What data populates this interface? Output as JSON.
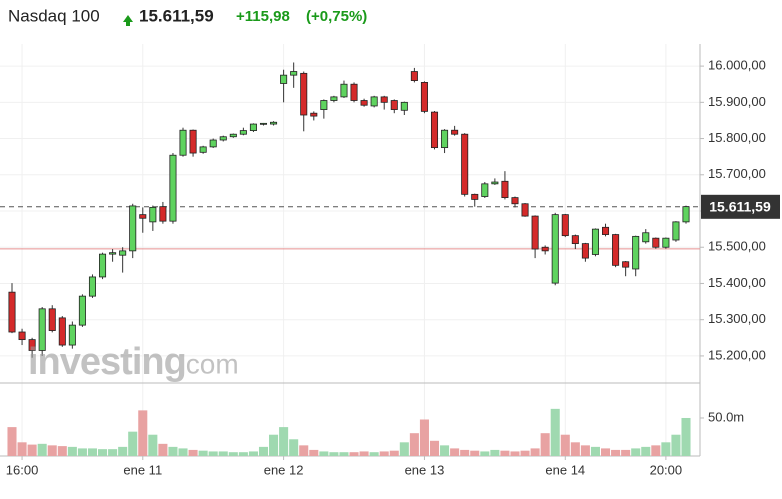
{
  "chart_data": {
    "type": "candlestick",
    "title": "Nasdaq 100",
    "last_price": "15.611,59",
    "change": "+115,98",
    "change_percent": "(+0,75%)",
    "watermark": [
      "investing",
      ".com"
    ],
    "categories": [
      null,
      "16:00",
      null,
      null,
      null,
      null,
      null,
      null,
      null,
      null,
      null,
      null,
      null,
      "ene 11",
      null,
      null,
      null,
      null,
      null,
      null,
      null,
      null,
      null,
      null,
      null,
      null,
      null,
      "ene 12",
      null,
      null,
      null,
      null,
      null,
      null,
      null,
      null,
      null,
      null,
      null,
      null,
      null,
      "ene 13",
      null,
      null,
      null,
      null,
      null,
      null,
      null,
      null,
      null,
      null,
      null,
      null,
      null,
      "ene 14",
      null,
      null,
      null,
      null,
      null,
      null,
      null,
      null,
      null,
      "20:00",
      null,
      null
    ],
    "open": [
      15376,
      15266,
      15245,
      15215,
      15330,
      15305,
      15230,
      15285,
      15365,
      15418,
      15481,
      15478,
      15490,
      15590,
      15570,
      15612,
      15572,
      15754,
      15823,
      15762,
      15777,
      15796,
      15805,
      15812,
      15822,
      15840,
      15840,
      15952,
      15975,
      15980,
      15870,
      15880,
      15905,
      15915,
      15950,
      15905,
      15890,
      15915,
      15905,
      15878,
      15985,
      15955,
      15873,
      15775,
      15823,
      15812,
      15646,
      15640,
      15675,
      15682,
      15637,
      15620,
      15586,
      15500,
      15401,
      15590,
      15532,
      15510,
      15480,
      15555,
      15535,
      15460,
      15440,
      15515,
      15525,
      15500,
      15520,
      15570
    ],
    "high": [
      15401,
      15275,
      15250,
      15335,
      15340,
      15310,
      15295,
      15370,
      15425,
      15485,
      15495,
      15500,
      15620,
      15610,
      15615,
      15625,
      15760,
      15830,
      15825,
      15780,
      15800,
      15808,
      15814,
      15830,
      15842,
      15843,
      15848,
      15990,
      16010,
      15985,
      15875,
      15908,
      15918,
      15960,
      15955,
      15910,
      15918,
      15918,
      15908,
      15902,
      15995,
      15958,
      15876,
      15826,
      15835,
      15815,
      15648,
      15680,
      15690,
      15710,
      15640,
      15622,
      15588,
      15505,
      15595,
      15592,
      15535,
      15512,
      15552,
      15565,
      15537,
      15462,
      15532,
      15550,
      15527,
      15527,
      15572,
      15615
    ],
    "low": [
      15263,
      15230,
      15195,
      15200,
      15265,
      15225,
      15220,
      15280,
      15360,
      15412,
      15460,
      15430,
      15470,
      15540,
      15545,
      15565,
      15565,
      15750,
      15750,
      15758,
      15774,
      15792,
      15802,
      15809,
      15818,
      15836,
      15836,
      15900,
      15940,
      15820,
      15850,
      15855,
      15900,
      15912,
      15900,
      15888,
      15886,
      15880,
      15870,
      15865,
      15955,
      15870,
      15770,
      15760,
      15808,
      15640,
      15612,
      15636,
      15672,
      15632,
      15610,
      15584,
      15470,
      15480,
      15395,
      15528,
      15495,
      15460,
      15475,
      15530,
      15445,
      15420,
      15420,
      15510,
      15496,
      15496,
      15515,
      15565
    ],
    "close": [
      15266,
      15245,
      15215,
      15330,
      15270,
      15230,
      15285,
      15365,
      15418,
      15481,
      15485,
      15490,
      15614,
      15580,
      15610,
      15572,
      15754,
      15823,
      15760,
      15777,
      15796,
      15805,
      15812,
      15822,
      15840,
      15842,
      15845,
      15975,
      15985,
      15865,
      15862,
      15905,
      15915,
      15950,
      15905,
      15892,
      15915,
      15900,
      15880,
      15900,
      15960,
      15875,
      15775,
      15823,
      15812,
      15646,
      15632,
      15675,
      15680,
      15637,
      15620,
      15586,
      15495,
      15490,
      15590,
      15532,
      15510,
      15470,
      15550,
      15535,
      15450,
      15445,
      15530,
      15540,
      15500,
      15525,
      15570,
      15612
    ],
    "volume": [
      38,
      18,
      15,
      16,
      14,
      13,
      12,
      10,
      10,
      9,
      9,
      12,
      32,
      60,
      28,
      16,
      12,
      10,
      8,
      7,
      6,
      6,
      5,
      5,
      6,
      12,
      28,
      38,
      22,
      14,
      8,
      6,
      5,
      5,
      5,
      6,
      5,
      6,
      7,
      18,
      30,
      48,
      20,
      14,
      10,
      8,
      7,
      6,
      8,
      7,
      6,
      7,
      10,
      30,
      62,
      28,
      18,
      14,
      12,
      10,
      8,
      8,
      10,
      12,
      14,
      18,
      28,
      50
    ],
    "up_color": "#5fd35f",
    "down_color": "#d42a2a",
    "volume_up_color": "#9fd9b0",
    "volume_down_color": "#e8a2a2",
    "reference_color": "#e89090",
    "previous_close": 15495.61,
    "current_price": {
      "value": 15611.59,
      "label": "15.611,59"
    },
    "ylim": [
      15128,
      16061
    ],
    "yticks": [
      {
        "value": 15200,
        "label": "15.200,00"
      },
      {
        "value": 15300,
        "label": "15.300,00"
      },
      {
        "value": 15400,
        "label": "15.400,00"
      },
      {
        "value": 15500,
        "label": "15.500,00"
      },
      {
        "value": 15600,
        "label": "15.600,00"
      },
      {
        "value": 15700,
        "label": "15.700,00"
      },
      {
        "value": 15800,
        "label": "15.800,00"
      },
      {
        "value": 15900,
        "label": "15.900,00"
      },
      {
        "value": 16000,
        "label": "16.000,00"
      }
    ],
    "y2lim": [
      0,
      96
    ],
    "y2ticks": [
      {
        "value": 50,
        "label": "50.0m"
      }
    ],
    "grid": true
  }
}
